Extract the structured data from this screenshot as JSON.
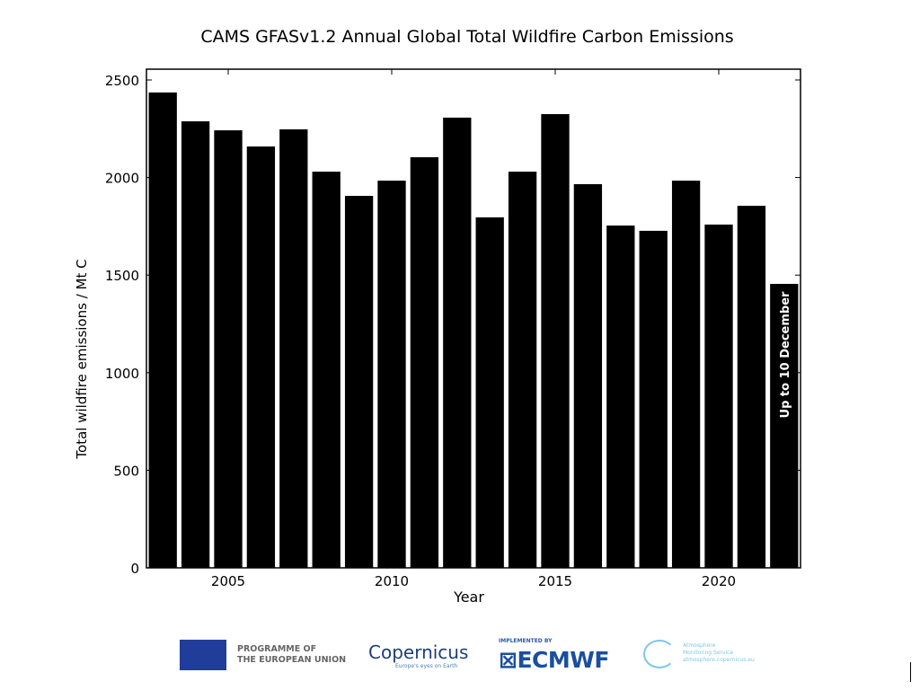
{
  "chart_data": {
    "type": "bar",
    "title": "CAMS GFASv1.2 Annual Global Total Wildfire Carbon Emissions",
    "xlabel": "Year",
    "ylabel": "Total wildfire emissions / Mt C",
    "categories": [
      2003,
      2004,
      2005,
      2006,
      2007,
      2008,
      2009,
      2010,
      2011,
      2012,
      2013,
      2014,
      2015,
      2016,
      2017,
      2018,
      2019,
      2020,
      2021,
      2022
    ],
    "values": [
      2436,
      2288,
      2242,
      2159,
      2247,
      2030,
      1906,
      1984,
      2104,
      2307,
      1796,
      2030,
      2325,
      1966,
      1754,
      1727,
      1984,
      1759,
      1855,
      1455
    ],
    "xlim": [
      2002.5,
      2022.5
    ],
    "ylim": [
      0,
      2550
    ],
    "xticks": [
      2005,
      2010,
      2015,
      2020
    ],
    "yticks": [
      0,
      500,
      1000,
      1500,
      2000,
      2500
    ],
    "annotation": "Up to 10 December",
    "bar_color": "#000000",
    "grid": false
  },
  "logos": {
    "eu_line1": "PROGRAMME OF",
    "eu_line2": "THE EUROPEAN UNION",
    "copernicus": "opernicus",
    "copernicus_sub": "Europe's eyes on Earth",
    "implemented_by": "IMPLEMENTED BY",
    "ecmwf": "ECMWF",
    "cams_line1": "Atmosphere",
    "cams_line2": "Monitoring Service",
    "cams_url": "atmosphere.copernicus.eu"
  }
}
